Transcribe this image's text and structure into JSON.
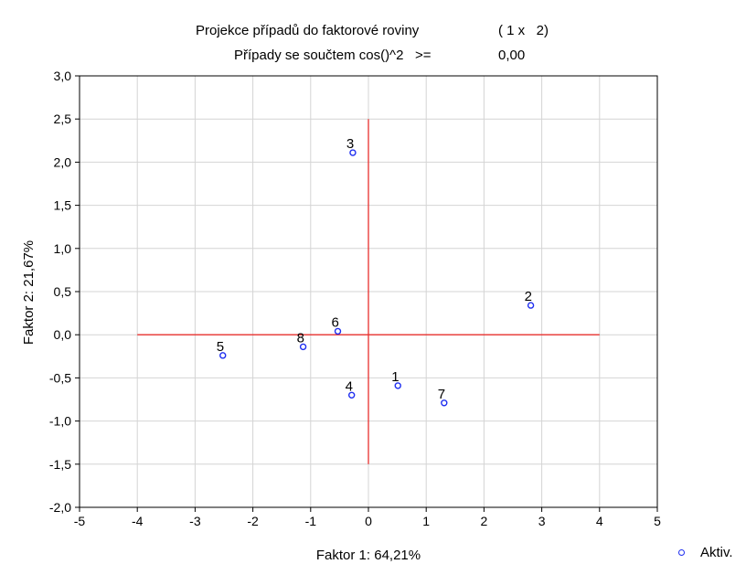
{
  "title": {
    "line1_left": "Projekce případů do faktorové roviny",
    "line1_right": "( 1 x   2)",
    "line2_left": "Případy se součtem cos()^2   >=",
    "line2_right": "0,00"
  },
  "chart_data": {
    "type": "scatter",
    "xlabel": "Faktor 1: 64,21%",
    "ylabel": "Faktor 2: 21,67%",
    "xlim": [
      -5,
      5
    ],
    "ylim": [
      -2.0,
      3.0
    ],
    "xticks": [
      "-5",
      "-4",
      "-3",
      "-2",
      "-1",
      "0",
      "1",
      "2",
      "3",
      "4",
      "5"
    ],
    "yticks": [
      "-2,0",
      "-1,5",
      "-1,0",
      "-0,5",
      "0,0",
      "0,5",
      "1,0",
      "1,5",
      "2,0",
      "2,5",
      "3,0"
    ],
    "grid": true,
    "reference_lines": {
      "x": [
        -4,
        4
      ],
      "y": [
        -1.5,
        2.5
      ]
    },
    "series": [
      {
        "name": "Aktiv.",
        "points": [
          {
            "label": "1",
            "x": 0.51,
            "y": -0.59
          },
          {
            "label": "2",
            "x": 2.81,
            "y": 0.34
          },
          {
            "label": "3",
            "x": -0.27,
            "y": 2.11
          },
          {
            "label": "4",
            "x": -0.29,
            "y": -0.7
          },
          {
            "label": "5",
            "x": -2.52,
            "y": -0.24
          },
          {
            "label": "6",
            "x": -0.53,
            "y": 0.04
          },
          {
            "label": "7",
            "x": 1.31,
            "y": -0.79
          },
          {
            "label": "8",
            "x": -1.13,
            "y": -0.14
          }
        ]
      }
    ],
    "legend_position": "bottom-right",
    "colors": {
      "marker": "#1f2ff0",
      "reference": "#e8302e",
      "grid": "#d4d4d4"
    }
  }
}
